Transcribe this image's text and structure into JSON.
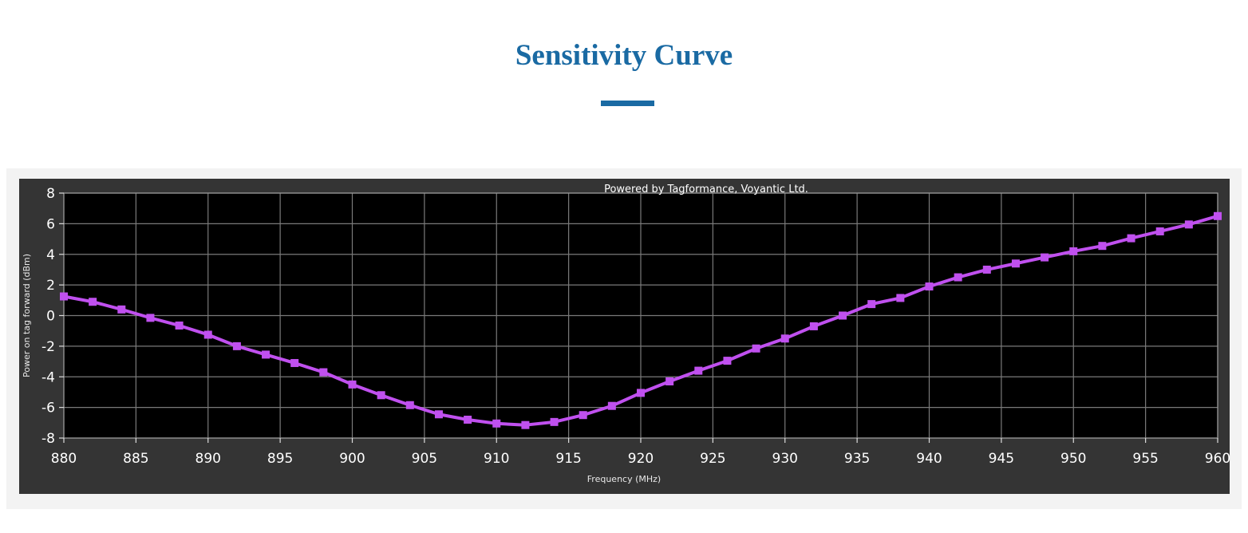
{
  "page": {
    "title": "Sensitivity Curve"
  },
  "colors": {
    "title": "#1a6aa3",
    "frame": "#f3f3f3",
    "panel": "#343434",
    "plot_bg": "#000000",
    "grid": "#7a7a7a",
    "series": "#c050ef"
  },
  "chart_data": {
    "type": "line",
    "title": "",
    "credit": "Powered by Tagformance, Voyantic Ltd.",
    "xlabel": "Frequency (MHz)",
    "ylabel": "Power on tag forward (dBm)",
    "xlim": [
      880,
      960
    ],
    "ylim": [
      -8,
      8
    ],
    "xticks": [
      880,
      885,
      890,
      895,
      900,
      905,
      910,
      915,
      920,
      925,
      930,
      935,
      940,
      945,
      950,
      955,
      960
    ],
    "yticks": [
      8,
      6,
      4,
      2,
      0,
      -2,
      -4,
      -6,
      -8
    ],
    "grid": true,
    "marker": "square",
    "series": [
      {
        "x": [
          880,
          882,
          884,
          886,
          888,
          890,
          892,
          894,
          896,
          898,
          900,
          902,
          904,
          906,
          908,
          910,
          912,
          914,
          916,
          918,
          920,
          922,
          924,
          926,
          928,
          930,
          932,
          934,
          936,
          938,
          940,
          942,
          944,
          946,
          948,
          950,
          952,
          954,
          956,
          958,
          960
        ],
        "y": [
          1.25,
          0.9,
          0.4,
          -0.15,
          -0.65,
          -1.25,
          -2.0,
          -2.55,
          -3.1,
          -3.7,
          -4.5,
          -5.2,
          -5.85,
          -6.45,
          -6.8,
          -7.05,
          -7.15,
          -6.95,
          -6.5,
          -5.9,
          -5.05,
          -4.3,
          -3.6,
          -2.95,
          -2.15,
          -1.5,
          -0.7,
          0.0,
          0.75,
          1.15,
          1.9,
          2.5,
          3.0,
          3.4,
          3.8,
          4.2,
          4.55,
          5.05,
          5.5,
          5.95,
          6.5
        ]
      }
    ]
  }
}
